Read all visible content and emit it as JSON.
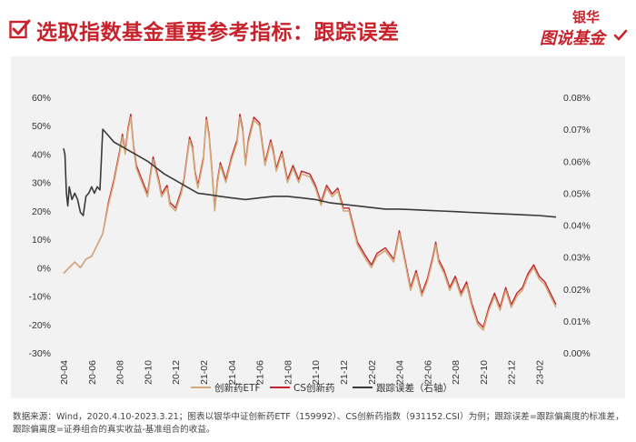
{
  "header": {
    "title": "选取指数基金重要参考指标：跟踪误差",
    "logo_line1": "银华",
    "logo_line2": "图说基金"
  },
  "colors": {
    "brand_red": "#c8232c",
    "etf": "#d4a97a",
    "cs_index": "#c0232b",
    "tracking_error": "#3a3a3a",
    "panel_bg": "#f2f2f2"
  },
  "source_note": "数据来源：Wind，2020.4.10-2023.3.21；图表以银华中证创新药ETF（159992）、CS创新药指数（931152.CSI）为例；跟踪误差=跟踪偏离度的标准差，跟踪偏离度=证券组合的真实收益-基准组合的收益。",
  "chart_data": {
    "type": "line",
    "x_dates": [
      "20-04",
      "20-06",
      "20-08",
      "20-10",
      "20-12",
      "21-02",
      "21-04",
      "21-06",
      "21-08",
      "21-10",
      "21-12",
      "22-02",
      "22-04",
      "22-06",
      "22-08",
      "22-10",
      "22-12",
      "23-02"
    ],
    "x_labels": [
      "20-04",
      "20-06",
      "20-08",
      "20-10",
      "20-12",
      "21-02",
      "21-04",
      "21-06",
      "21-08",
      "21-10",
      "21-12",
      "22-02",
      "22-04",
      "22-06",
      "22-08",
      "22-10",
      "22-12",
      "23-02"
    ],
    "y_left_ticks": [
      "60%",
      "50%",
      "40%",
      "30%",
      "20%",
      "10%",
      "0%",
      "-10%",
      "-20%",
      "-30%"
    ],
    "y_left_range": [
      -30,
      60
    ],
    "y_right_ticks": [
      "0.08%",
      "0.07%",
      "0.06%",
      "0.05%",
      "0.04%",
      "0.03%",
      "0.02%",
      "0.01%",
      "0.00%"
    ],
    "y_right_range": [
      0,
      0.08
    ],
    "legend_position": "bottom",
    "series": [
      {
        "name": "创新药ETF",
        "axis": "left",
        "points": [
          [
            0,
            -2
          ],
          [
            0.2,
            0
          ],
          [
            0.4,
            2
          ],
          [
            0.6,
            0
          ],
          [
            0.8,
            3
          ],
          [
            1.0,
            4
          ],
          [
            1.2,
            8
          ],
          [
            1.4,
            12
          ],
          [
            1.6,
            22
          ],
          [
            1.8,
            30
          ],
          [
            2.0,
            40
          ],
          [
            2.1,
            46
          ],
          [
            2.2,
            40
          ],
          [
            2.3,
            48
          ],
          [
            2.4,
            53
          ],
          [
            2.5,
            42
          ],
          [
            2.6,
            35
          ],
          [
            2.8,
            30
          ],
          [
            3.0,
            25
          ],
          [
            3.1,
            32
          ],
          [
            3.2,
            38
          ],
          [
            3.4,
            30
          ],
          [
            3.5,
            25
          ],
          [
            3.7,
            28
          ],
          [
            3.8,
            22
          ],
          [
            4.0,
            20
          ],
          [
            4.2,
            26
          ],
          [
            4.3,
            30
          ],
          [
            4.5,
            45
          ],
          [
            4.6,
            42
          ],
          [
            4.7,
            33
          ],
          [
            4.8,
            28
          ],
          [
            5.0,
            38
          ],
          [
            5.1,
            52
          ],
          [
            5.2,
            46
          ],
          [
            5.3,
            34
          ],
          [
            5.4,
            20
          ],
          [
            5.5,
            30
          ],
          [
            5.6,
            36
          ],
          [
            5.8,
            30
          ],
          [
            6.0,
            38
          ],
          [
            6.2,
            44
          ],
          [
            6.3,
            53
          ],
          [
            6.4,
            48
          ],
          [
            6.5,
            36
          ],
          [
            6.6,
            44
          ],
          [
            6.8,
            52
          ],
          [
            7.0,
            50
          ],
          [
            7.2,
            36
          ],
          [
            7.4,
            44
          ],
          [
            7.5,
            40
          ],
          [
            7.6,
            34
          ],
          [
            7.8,
            40
          ],
          [
            8.0,
            30
          ],
          [
            8.2,
            35
          ],
          [
            8.4,
            30
          ],
          [
            8.5,
            33
          ],
          [
            8.8,
            32
          ],
          [
            9.0,
            28
          ],
          [
            9.2,
            22
          ],
          [
            9.4,
            28
          ],
          [
            9.6,
            25
          ],
          [
            9.8,
            27
          ],
          [
            10.0,
            20
          ],
          [
            10.2,
            20
          ],
          [
            10.5,
            8
          ],
          [
            10.8,
            3
          ],
          [
            11.0,
            0
          ],
          [
            11.2,
            4
          ],
          [
            11.5,
            6
          ],
          [
            11.8,
            2
          ],
          [
            12.0,
            12
          ],
          [
            12.2,
            2
          ],
          [
            12.4,
            -8
          ],
          [
            12.6,
            -2
          ],
          [
            12.8,
            -10
          ],
          [
            13.0,
            -5
          ],
          [
            13.2,
            3
          ],
          [
            13.3,
            8
          ],
          [
            13.4,
            2
          ],
          [
            13.6,
            -2
          ],
          [
            13.8,
            -8
          ],
          [
            14.0,
            -4
          ],
          [
            14.2,
            -10
          ],
          [
            14.4,
            -6
          ],
          [
            14.6,
            -14
          ],
          [
            14.8,
            -20
          ],
          [
            15.0,
            -22
          ],
          [
            15.2,
            -15
          ],
          [
            15.4,
            -10
          ],
          [
            15.6,
            -15
          ],
          [
            15.8,
            -8
          ],
          [
            16.0,
            -14
          ],
          [
            16.2,
            -10
          ],
          [
            16.4,
            -8
          ],
          [
            16.6,
            -3
          ],
          [
            16.8,
            0
          ],
          [
            17.0,
            -4
          ],
          [
            17.2,
            -6
          ],
          [
            17.4,
            -10
          ],
          [
            17.6,
            -14
          ]
        ]
      },
      {
        "name": "CS创新药",
        "axis": "left",
        "points": [
          [
            0,
            -2
          ],
          [
            0.2,
            0
          ],
          [
            0.4,
            2
          ],
          [
            0.6,
            0
          ],
          [
            0.8,
            3
          ],
          [
            1.0,
            4
          ],
          [
            1.2,
            8
          ],
          [
            1.4,
            12
          ],
          [
            1.6,
            23
          ],
          [
            1.8,
            31
          ],
          [
            2.0,
            41
          ],
          [
            2.1,
            47
          ],
          [
            2.2,
            41
          ],
          [
            2.3,
            49
          ],
          [
            2.4,
            54
          ],
          [
            2.5,
            43
          ],
          [
            2.6,
            36
          ],
          [
            2.8,
            31
          ],
          [
            3.0,
            26
          ],
          [
            3.1,
            33
          ],
          [
            3.2,
            39
          ],
          [
            3.4,
            31
          ],
          [
            3.5,
            26
          ],
          [
            3.7,
            29
          ],
          [
            3.8,
            23
          ],
          [
            4.0,
            21
          ],
          [
            4.2,
            27
          ],
          [
            4.3,
            31
          ],
          [
            4.5,
            46
          ],
          [
            4.6,
            43
          ],
          [
            4.7,
            34
          ],
          [
            4.8,
            29
          ],
          [
            5.0,
            39
          ],
          [
            5.1,
            53
          ],
          [
            5.2,
            47
          ],
          [
            5.3,
            35
          ],
          [
            5.4,
            21
          ],
          [
            5.5,
            31
          ],
          [
            5.6,
            37
          ],
          [
            5.8,
            31
          ],
          [
            6.0,
            39
          ],
          [
            6.2,
            45
          ],
          [
            6.3,
            54
          ],
          [
            6.4,
            49
          ],
          [
            6.5,
            37
          ],
          [
            6.6,
            45
          ],
          [
            6.8,
            53
          ],
          [
            7.0,
            51
          ],
          [
            7.2,
            37
          ],
          [
            7.4,
            45
          ],
          [
            7.5,
            41
          ],
          [
            7.6,
            35
          ],
          [
            7.8,
            41
          ],
          [
            8.0,
            31
          ],
          [
            8.2,
            36
          ],
          [
            8.4,
            31
          ],
          [
            8.5,
            34
          ],
          [
            8.8,
            33
          ],
          [
            9.0,
            29
          ],
          [
            9.2,
            23
          ],
          [
            9.4,
            29
          ],
          [
            9.6,
            26
          ],
          [
            9.8,
            28
          ],
          [
            10.0,
            21
          ],
          [
            10.2,
            21
          ],
          [
            10.5,
            9
          ],
          [
            10.8,
            4
          ],
          [
            11.0,
            1
          ],
          [
            11.2,
            5
          ],
          [
            11.5,
            7
          ],
          [
            11.8,
            3
          ],
          [
            12.0,
            13
          ],
          [
            12.2,
            3
          ],
          [
            12.4,
            -7
          ],
          [
            12.6,
            -1
          ],
          [
            12.8,
            -9
          ],
          [
            13.0,
            -4
          ],
          [
            13.2,
            4
          ],
          [
            13.3,
            9
          ],
          [
            13.4,
            3
          ],
          [
            13.6,
            -1
          ],
          [
            13.8,
            -7
          ],
          [
            14.0,
            -3
          ],
          [
            14.2,
            -9
          ],
          [
            14.4,
            -5
          ],
          [
            14.6,
            -13
          ],
          [
            14.8,
            -19
          ],
          [
            15.0,
            -21
          ],
          [
            15.2,
            -14
          ],
          [
            15.4,
            -9
          ],
          [
            15.6,
            -14
          ],
          [
            15.8,
            -7
          ],
          [
            16.0,
            -13
          ],
          [
            16.2,
            -9
          ],
          [
            16.4,
            -7
          ],
          [
            16.6,
            -2
          ],
          [
            16.8,
            1
          ],
          [
            17.0,
            -3
          ],
          [
            17.2,
            -5
          ],
          [
            17.4,
            -9
          ],
          [
            17.6,
            -13
          ]
        ]
      },
      {
        "name": "跟踪误差（右轴）",
        "axis": "right",
        "points": [
          [
            0,
            0.064
          ],
          [
            0.05,
            0.062
          ],
          [
            0.1,
            0.05
          ],
          [
            0.15,
            0.046
          ],
          [
            0.2,
            0.052
          ],
          [
            0.3,
            0.048
          ],
          [
            0.4,
            0.05
          ],
          [
            0.5,
            0.048
          ],
          [
            0.6,
            0.044
          ],
          [
            0.7,
            0.043
          ],
          [
            0.8,
            0.049
          ],
          [
            0.9,
            0.05
          ],
          [
            1.0,
            0.052
          ],
          [
            1.1,
            0.05
          ],
          [
            1.2,
            0.052
          ],
          [
            1.3,
            0.051
          ],
          [
            1.4,
            0.07
          ],
          [
            1.6,
            0.068
          ],
          [
            1.8,
            0.066
          ],
          [
            2.0,
            0.065
          ],
          [
            2.2,
            0.064
          ],
          [
            2.4,
            0.063
          ],
          [
            2.6,
            0.062
          ],
          [
            2.8,
            0.061
          ],
          [
            3.0,
            0.06
          ],
          [
            3.3,
            0.058
          ],
          [
            3.6,
            0.056
          ],
          [
            4.0,
            0.054
          ],
          [
            4.4,
            0.052
          ],
          [
            4.8,
            0.05
          ],
          [
            5.2,
            0.0495
          ],
          [
            5.6,
            0.049
          ],
          [
            6.0,
            0.0485
          ],
          [
            6.5,
            0.048
          ],
          [
            7.0,
            0.0485
          ],
          [
            7.5,
            0.049
          ],
          [
            8.0,
            0.049
          ],
          [
            8.5,
            0.0485
          ],
          [
            9.0,
            0.048
          ],
          [
            9.5,
            0.047
          ],
          [
            10.0,
            0.0465
          ],
          [
            10.5,
            0.046
          ],
          [
            11.0,
            0.0455
          ],
          [
            11.5,
            0.045
          ],
          [
            12.0,
            0.045
          ],
          [
            12.5,
            0.0448
          ],
          [
            13.0,
            0.0446
          ],
          [
            13.5,
            0.0444
          ],
          [
            14.0,
            0.0442
          ],
          [
            14.5,
            0.044
          ],
          [
            15.0,
            0.0438
          ],
          [
            15.5,
            0.0436
          ],
          [
            16.0,
            0.0434
          ],
          [
            16.5,
            0.0432
          ],
          [
            17.0,
            0.043
          ],
          [
            17.6,
            0.0425
          ]
        ]
      }
    ]
  }
}
